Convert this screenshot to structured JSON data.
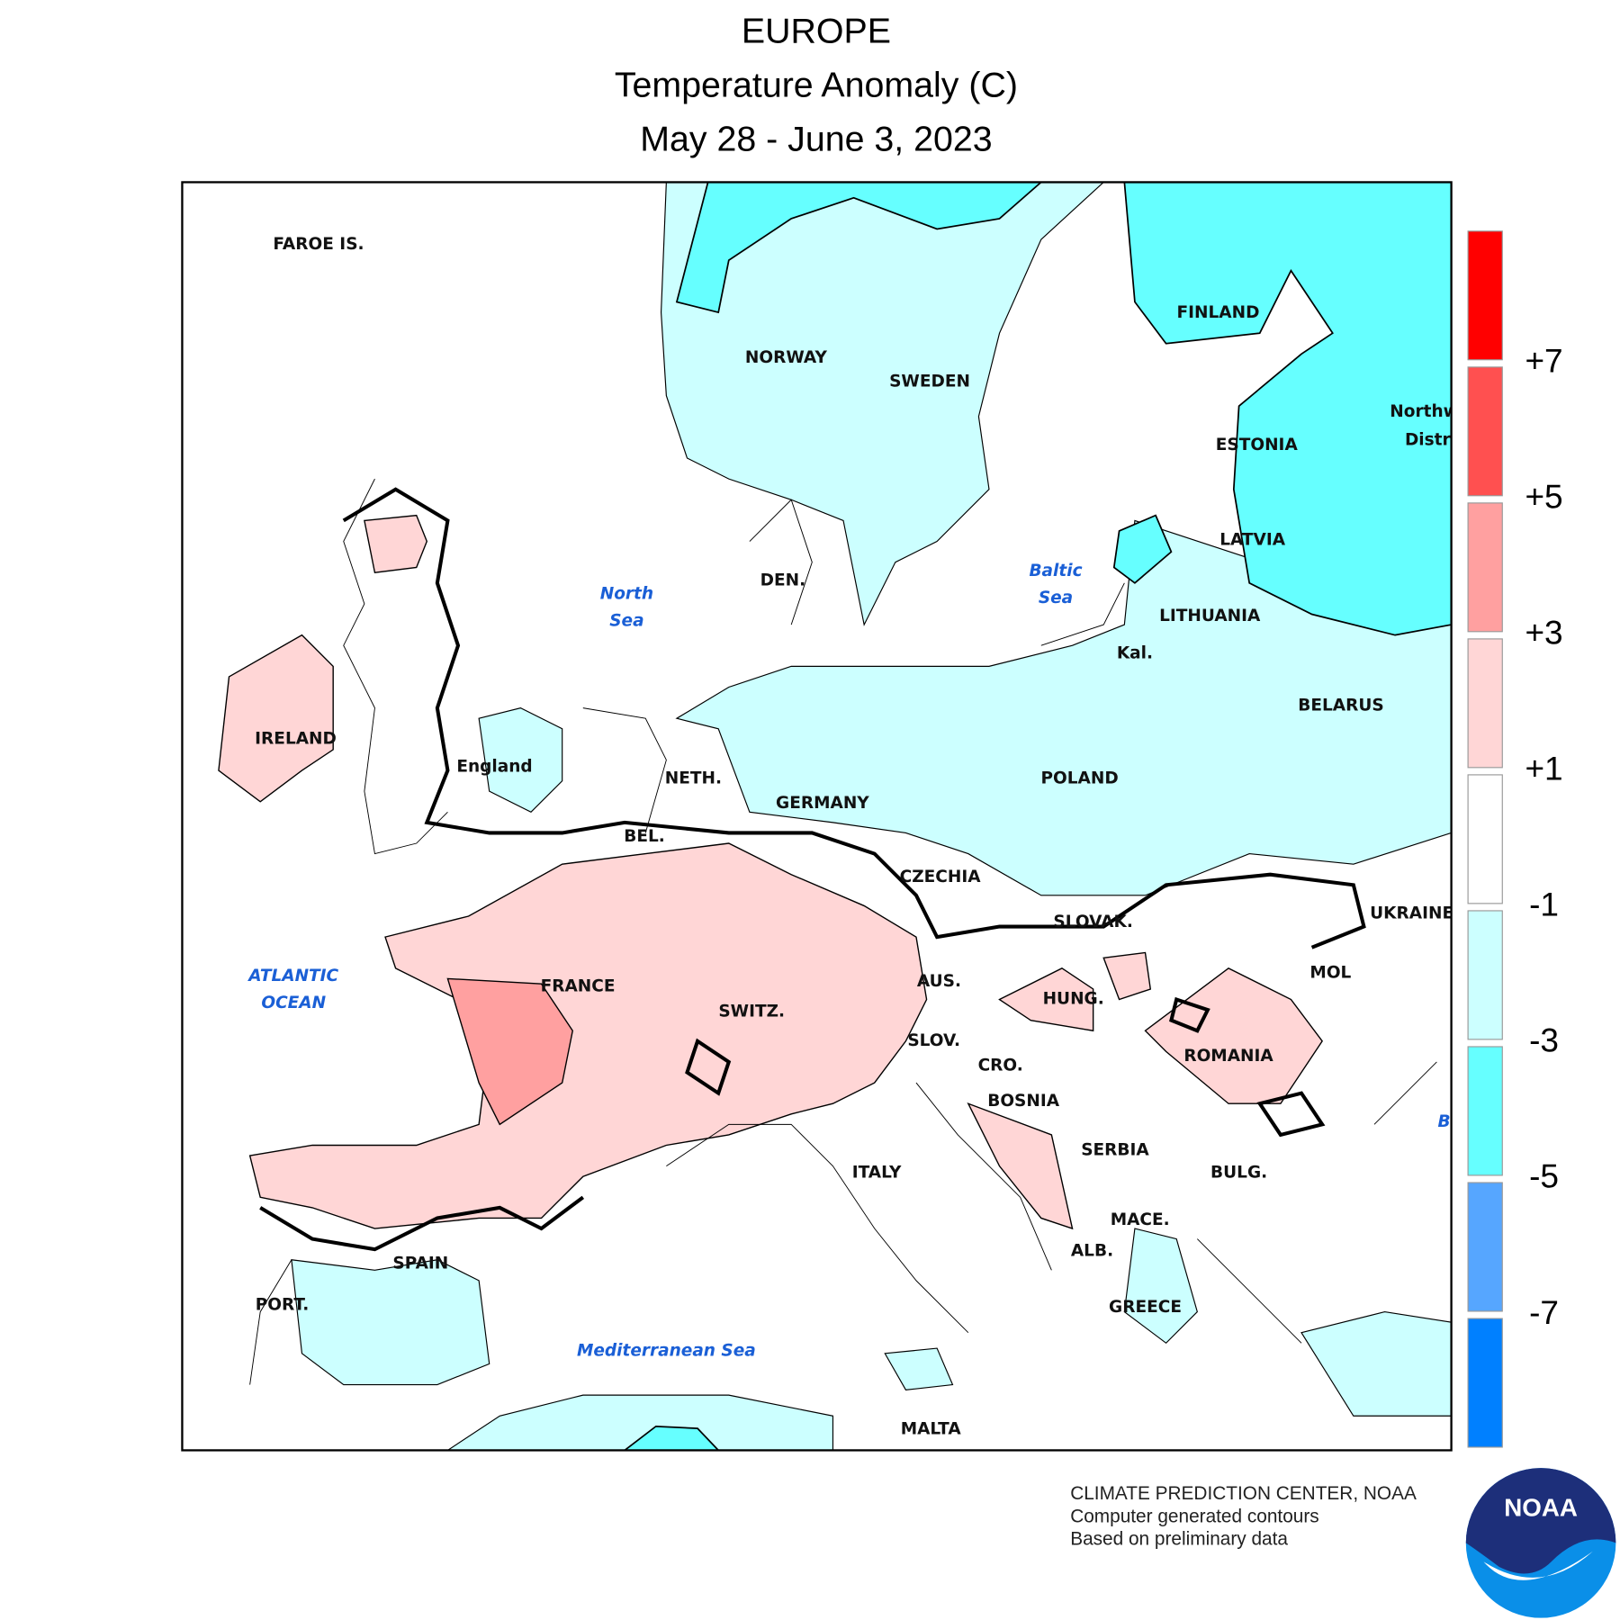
{
  "header": {
    "region": "EUROPE",
    "title": "Temperature Anomaly (C)",
    "period": "May 28 - June 3, 2023"
  },
  "map": {
    "country_labels": [
      "FAROE IS.",
      "NORWAY",
      "SWEDEN",
      "FINLAND",
      "ESTONIA",
      "LATVIA",
      "LITHUANIA",
      "Kal.",
      "BELARUS",
      "POLAND",
      "GERMANY",
      "NETH.",
      "BEL.",
      "DEN.",
      "IRELAND",
      "England",
      "FRANCE",
      "SWITZ.",
      "AUS.",
      "CZECHIA",
      "SLOVAK.",
      "HUNG.",
      "SLOV.",
      "CRO.",
      "BOSNIA",
      "SERBIA",
      "ROMANIA",
      "BULG.",
      "MACE.",
      "ALB.",
      "GREECE",
      "ITALY",
      "SPAIN",
      "PORT.",
      "MALTA",
      "UKRAINE",
      "MOL",
      "Northw",
      "Distri"
    ],
    "sea_labels": [
      {
        "lines": [
          "North",
          "Sea"
        ]
      },
      {
        "lines": [
          "Baltic",
          "Sea"
        ]
      },
      {
        "lines": [
          "ATLANTIC",
          "OCEAN"
        ]
      },
      {
        "lines": [
          "Mediterranean Sea"
        ]
      },
      {
        "lines": [
          "B"
        ]
      }
    ]
  },
  "legend": {
    "colors": [
      "#ff0000",
      "#ff5050",
      "#ffa0a0",
      "#ffd6d6",
      "#ffffff",
      "#ccffff",
      "#66ffff",
      "#56a6ff",
      "#0080ff"
    ],
    "ticks": [
      {
        "value": 7,
        "label": "+7"
      },
      {
        "value": 5,
        "label": "+5"
      },
      {
        "value": 3,
        "label": "+3"
      },
      {
        "value": 1,
        "label": "+1"
      },
      -1,
      -3,
      -5,
      -7
    ]
  },
  "footer": {
    "lines": [
      "CLIMATE PREDICTION CENTER, NOAA",
      "Computer generated contours",
      "Based on preliminary data"
    ],
    "logo": "NOAA"
  }
}
